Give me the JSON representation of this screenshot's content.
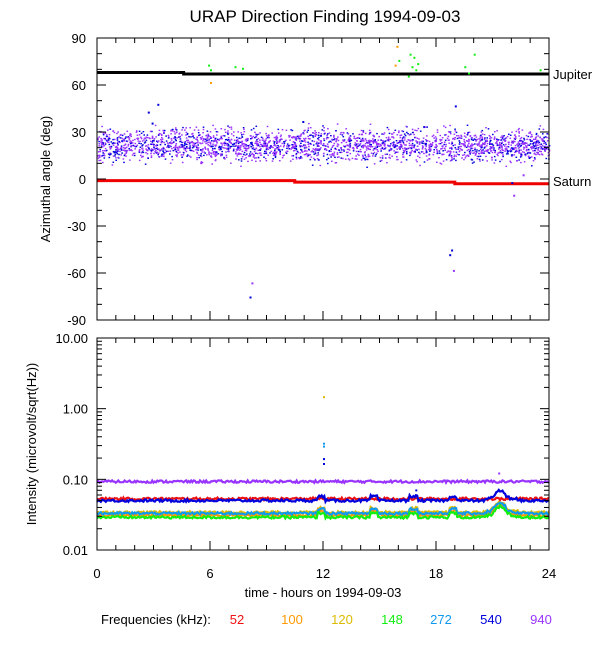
{
  "title": "URAP Direction Finding  1994-09-03",
  "top_panel": {
    "ylabel": "Azimuthal angle (deg)",
    "yticks": [
      "90",
      "60",
      "30",
      "0",
      "-30",
      "-60",
      "-90"
    ],
    "ylim": [
      -90,
      90
    ],
    "annotations": {
      "jupiter": "Jupiter",
      "saturn": "Saturn"
    }
  },
  "bottom_panel": {
    "ylabel": "Intensity (microvolt/sqrt(Hz))",
    "yticks": [
      "10.00",
      "1.00",
      "0.10",
      "0.01"
    ],
    "ylim": [
      0.01,
      10
    ],
    "scale": "log"
  },
  "xaxis": {
    "label": "time - hours on 1994-09-03",
    "ticks": [
      "0",
      "6",
      "12",
      "18",
      "24"
    ],
    "xlim": [
      0,
      24
    ]
  },
  "legend": {
    "title": "Frequencies (kHz):",
    "items": [
      {
        "label": "52",
        "color": "#ee1111"
      },
      {
        "label": "100",
        "color": "#ff9900"
      },
      {
        "label": "120",
        "color": "#ddbb00"
      },
      {
        "label": "148",
        "color": "#11ee11"
      },
      {
        "label": "272",
        "color": "#1199ee"
      },
      {
        "label": "540",
        "color": "#0000dd"
      },
      {
        "label": "940",
        "color": "#9933ff"
      }
    ]
  },
  "chart_data": {
    "type": "scatter",
    "title": "URAP Direction Finding  1994-09-03",
    "xlabel": "time - hours on 1994-09-03",
    "xlim": [
      0,
      24
    ],
    "panels": [
      {
        "name": "azimuth",
        "ylabel": "Azimuthal angle (deg)",
        "ylim": [
          -90,
          90
        ],
        "reference_lines": [
          {
            "label": "Jupiter",
            "color": "#000000",
            "x": [
              0,
              4.6,
              4.6,
              24
            ],
            "y": [
              68,
              68,
              67,
              67
            ]
          },
          {
            "label": "Saturn",
            "color": "#ee0000",
            "x": [
              0,
              10.5,
              10.5,
              19,
              19,
              24
            ],
            "y": [
              -1,
              -1,
              -2,
              -2,
              -3,
              -3
            ]
          }
        ],
        "main_band": {
          "series": [
            "940",
            "540"
          ],
          "center": 22,
          "spread": 10
        },
        "outliers": [
          {
            "series": "148",
            "x": 5.9,
            "y": 73
          },
          {
            "series": "148",
            "x": 6.0,
            "y": 70
          },
          {
            "series": "100",
            "x": 6.0,
            "y": 62
          },
          {
            "series": "148",
            "x": 7.3,
            "y": 72
          },
          {
            "series": "148",
            "x": 7.7,
            "y": 71
          },
          {
            "series": "100",
            "x": 15.9,
            "y": 85
          },
          {
            "series": "148",
            "x": 16.0,
            "y": 76
          },
          {
            "series": "100",
            "x": 15.8,
            "y": 73
          },
          {
            "series": "148",
            "x": 16.6,
            "y": 80
          },
          {
            "series": "148",
            "x": 16.8,
            "y": 78
          },
          {
            "series": "148",
            "x": 16.7,
            "y": 72
          },
          {
            "series": "148",
            "x": 16.9,
            "y": 70
          },
          {
            "series": "148",
            "x": 17.0,
            "y": 74
          },
          {
            "series": "148",
            "x": 16.5,
            "y": 66
          },
          {
            "series": "148",
            "x": 19.5,
            "y": 72
          },
          {
            "series": "148",
            "x": 19.7,
            "y": 68
          },
          {
            "series": "148",
            "x": 20.0,
            "y": 80
          },
          {
            "series": "148",
            "x": 23.5,
            "y": 70
          },
          {
            "series": "540",
            "x": 2.7,
            "y": 43
          },
          {
            "series": "540",
            "x": 3.2,
            "y": 48
          },
          {
            "series": "540",
            "x": 2.9,
            "y": 36
          },
          {
            "series": "540",
            "x": 19.0,
            "y": 47
          },
          {
            "series": "540",
            "x": 10.9,
            "y": 37
          },
          {
            "series": "540",
            "x": 18.8,
            "y": -45
          },
          {
            "series": "540",
            "x": 18.7,
            "y": -48
          },
          {
            "series": "940",
            "x": 18.9,
            "y": -58
          },
          {
            "series": "540",
            "x": 8.1,
            "y": -75
          },
          {
            "series": "940",
            "x": 8.2,
            "y": -66
          },
          {
            "series": "540",
            "x": 22.0,
            "y": -2
          },
          {
            "series": "940",
            "x": 22.1,
            "y": -10
          },
          {
            "series": "940",
            "x": 22.6,
            "y": 3
          }
        ]
      },
      {
        "name": "intensity",
        "ylabel": "Intensity (microvolt/sqrt(Hz))",
        "yscale": "log",
        "ylim": [
          0.01,
          10
        ],
        "series": [
          {
            "name": "940",
            "level": 0.093
          },
          {
            "name": "540",
            "level": 0.05
          },
          {
            "name": "52",
            "level": 0.053
          },
          {
            "name": "272",
            "level": 0.033
          },
          {
            "name": "120",
            "level": 0.034
          },
          {
            "name": "100",
            "level": 0.031
          },
          {
            "name": "148",
            "level": 0.029
          }
        ],
        "outliers": [
          {
            "series": "120",
            "x": 12.0,
            "y": 1.5
          },
          {
            "series": "272",
            "x": 12.0,
            "y": 0.33
          },
          {
            "series": "272",
            "x": 12.0,
            "y": 0.3
          },
          {
            "series": "540",
            "x": 12.0,
            "y": 0.2
          },
          {
            "series": "540",
            "x": 12.0,
            "y": 0.17
          },
          {
            "series": "540",
            "x": 16.9,
            "y": 0.072
          },
          {
            "series": "940",
            "x": 21.3,
            "y": 0.125
          }
        ]
      }
    ]
  }
}
